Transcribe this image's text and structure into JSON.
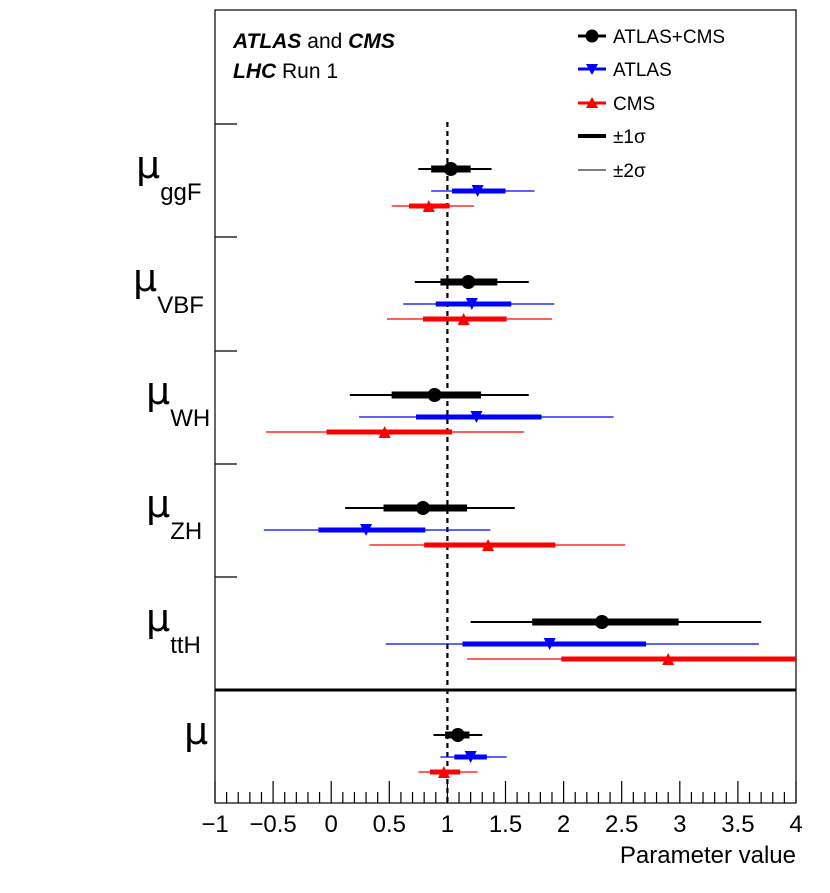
{
  "chart_data": {
    "type": "scatter",
    "xlabel": "Parameter value",
    "xlim": [
      -1,
      4
    ],
    "xticks": [
      "−1",
      "−0.5",
      "0",
      "0.5",
      "1",
      "1.5",
      "2",
      "2.5",
      "3",
      "3.5",
      "4"
    ],
    "reference_line": 1,
    "header": {
      "line1_part1": "ATLAS",
      "line1_part2": " and ",
      "line1_part3": "CMS",
      "line2_part1": "LHC",
      "line2_part2": " Run 1"
    },
    "legend": [
      {
        "label": "ATLAS+CMS",
        "color": "#000000",
        "marker": "circle"
      },
      {
        "label": "ATLAS",
        "color": "#0000ff",
        "marker": "triangle-down"
      },
      {
        "label": "CMS",
        "color": "#ff0000",
        "marker": "triangle-up"
      },
      {
        "label": "±1σ",
        "style": "thick"
      },
      {
        "label": "±2σ",
        "style": "thin"
      }
    ],
    "parameters": [
      {
        "symbol": "μ",
        "sub": "ggF",
        "points": [
          {
            "series": "ATLAS+CMS",
            "value": 1.03,
            "s1": [
              0.86,
              1.2
            ],
            "s2": [
              0.75,
              1.38
            ]
          },
          {
            "series": "ATLAS",
            "value": 1.26,
            "s1": [
              1.04,
              1.5
            ],
            "s2": [
              0.86,
              1.75
            ]
          },
          {
            "series": "CMS",
            "value": 0.84,
            "s1": [
              0.67,
              1.02
            ],
            "s2": [
              0.52,
              1.23
            ]
          }
        ]
      },
      {
        "symbol": "μ",
        "sub": "VBF",
        "points": [
          {
            "series": "ATLAS+CMS",
            "value": 1.18,
            "s1": [
              0.94,
              1.43
            ],
            "s2": [
              0.72,
              1.7
            ]
          },
          {
            "series": "ATLAS",
            "value": 1.21,
            "s1": [
              0.9,
              1.55
            ],
            "s2": [
              0.62,
              1.92
            ]
          },
          {
            "series": "CMS",
            "value": 1.14,
            "s1": [
              0.79,
              1.51
            ],
            "s2": [
              0.48,
              1.9
            ]
          }
        ]
      },
      {
        "symbol": "μ",
        "sub": "WH",
        "points": [
          {
            "series": "ATLAS+CMS",
            "value": 0.89,
            "s1": [
              0.52,
              1.29
            ],
            "s2": [
              0.16,
              1.7
            ]
          },
          {
            "series": "ATLAS",
            "value": 1.25,
            "s1": [
              0.73,
              1.81
            ],
            "s2": [
              0.24,
              2.43
            ]
          },
          {
            "series": "CMS",
            "value": 0.46,
            "s1": [
              -0.04,
              1.04
            ],
            "s2": [
              -0.56,
              1.66
            ]
          }
        ]
      },
      {
        "symbol": "μ",
        "sub": "ZH",
        "points": [
          {
            "series": "ATLAS+CMS",
            "value": 0.79,
            "s1": [
              0.45,
              1.17
            ],
            "s2": [
              0.12,
              1.58
            ]
          },
          {
            "series": "ATLAS",
            "value": 0.3,
            "s1": [
              -0.11,
              0.81
            ],
            "s2": [
              -0.58,
              1.37
            ]
          },
          {
            "series": "CMS",
            "value": 1.35,
            "s1": [
              0.8,
              1.93
            ],
            "s2": [
              0.33,
              2.53
            ]
          }
        ]
      },
      {
        "symbol": "μ",
        "sub": "ttH",
        "points": [
          {
            "series": "ATLAS+CMS",
            "value": 2.33,
            "s1": [
              1.73,
              2.99
            ],
            "s2": [
              1.2,
              3.7
            ]
          },
          {
            "series": "ATLAS",
            "value": 1.88,
            "s1": [
              1.13,
              2.71
            ],
            "s2": [
              0.47,
              3.68
            ]
          },
          {
            "series": "CMS",
            "value": 2.9,
            "s1": [
              1.98,
              4.0
            ],
            "s2": [
              1.17,
              4.0
            ]
          }
        ]
      },
      {
        "symbol": "μ",
        "sub": "",
        "points": [
          {
            "series": "ATLAS+CMS",
            "value": 1.09,
            "s1": [
              0.98,
              1.19
            ],
            "s2": [
              0.88,
              1.3
            ]
          },
          {
            "series": "ATLAS",
            "value": 1.2,
            "s1": [
              1.06,
              1.34
            ],
            "s2": [
              0.94,
              1.51
            ]
          },
          {
            "series": "CMS",
            "value": 0.97,
            "s1": [
              0.85,
              1.11
            ],
            "s2": [
              0.75,
              1.26
            ]
          }
        ]
      }
    ]
  }
}
